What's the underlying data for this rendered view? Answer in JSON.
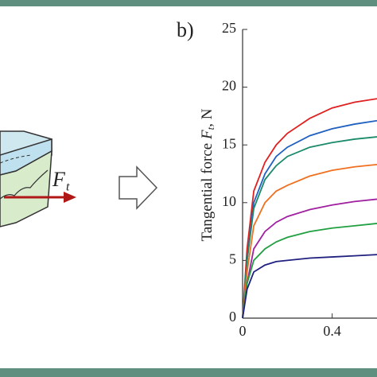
{
  "chart_data": {
    "type": "line",
    "panel_label": "b)",
    "y_label": {
      "text": "Tangential force ",
      "symbol": "F",
      "subscript": "t",
      "unit": ", N"
    },
    "x": [
      0,
      0.02,
      0.05,
      0.1,
      0.15,
      0.2,
      0.3,
      0.4,
      0.5,
      0.6
    ],
    "series": [
      {
        "color": "#e02020",
        "values": [
          0,
          6,
          11,
          13.5,
          15,
          16,
          17.3,
          18.2,
          18.7,
          19
        ]
      },
      {
        "color": "#2060c0",
        "values": [
          0,
          5,
          10,
          12.5,
          14,
          14.8,
          15.8,
          16.4,
          16.8,
          17.1
        ]
      },
      {
        "color": "#1a8a6a",
        "values": [
          0,
          5,
          9.5,
          12,
          13.2,
          14,
          14.8,
          15.2,
          15.5,
          15.7
        ]
      },
      {
        "color": "#f07020",
        "values": [
          0,
          4,
          8,
          10,
          11,
          11.5,
          12.3,
          12.8,
          13.1,
          13.3
        ]
      },
      {
        "color": "#a020a0",
        "values": [
          0,
          3,
          6,
          7.5,
          8.3,
          8.8,
          9.4,
          9.8,
          10.1,
          10.3
        ]
      },
      {
        "color": "#20a040",
        "values": [
          0,
          3,
          5,
          6,
          6.6,
          7,
          7.5,
          7.8,
          8,
          8.2
        ]
      },
      {
        "color": "#202080",
        "values": [
          0,
          2.5,
          4,
          4.6,
          4.9,
          5,
          5.2,
          5.3,
          5.4,
          5.5
        ]
      }
    ],
    "xlim": [
      0,
      0.6
    ],
    "xticks": [
      0,
      0.4
    ],
    "ylim": [
      0,
      25
    ],
    "yticks": [
      0,
      5,
      10,
      15,
      20,
      25
    ]
  },
  "diagram": {
    "force_symbol": "F",
    "force_subscript": "t"
  }
}
